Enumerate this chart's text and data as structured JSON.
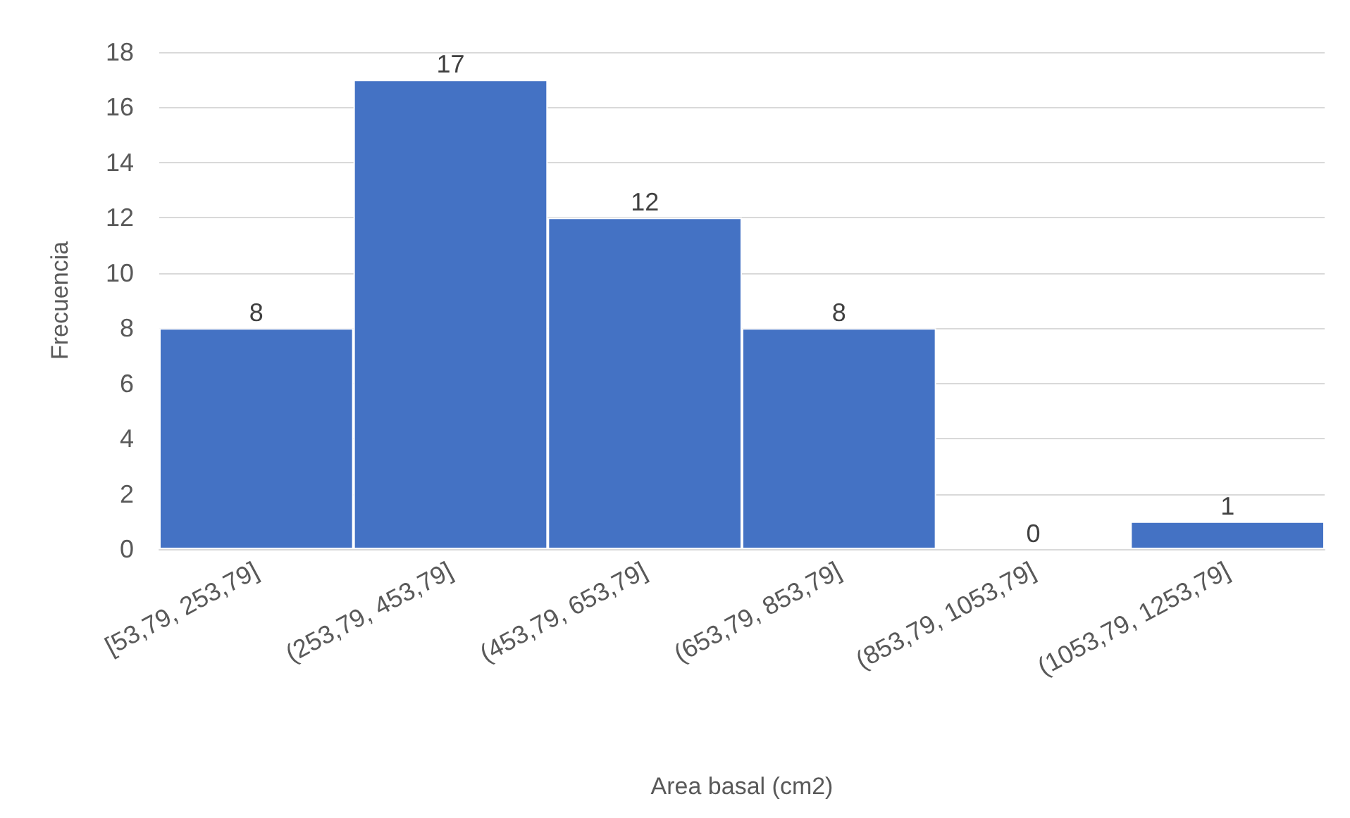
{
  "chart_data": {
    "type": "bar",
    "xlabel": "Area basal (cm2)",
    "ylabel": "Frecuencia",
    "categories": [
      "[53,79, 253,79]",
      "(253,79, 453,79]",
      "(453,79, 653,79]",
      "(653,79, 853,79]",
      "(853,79, 1053,79]",
      "(1053,79, 1253,79]"
    ],
    "values": [
      8,
      17,
      12,
      8,
      0,
      1
    ],
    "color": "#4472c4",
    "ylim": [
      0,
      18
    ],
    "yticks": [
      0,
      2,
      4,
      6,
      8,
      10,
      12,
      14,
      16,
      18
    ],
    "grid": "y",
    "data_labels": true
  }
}
